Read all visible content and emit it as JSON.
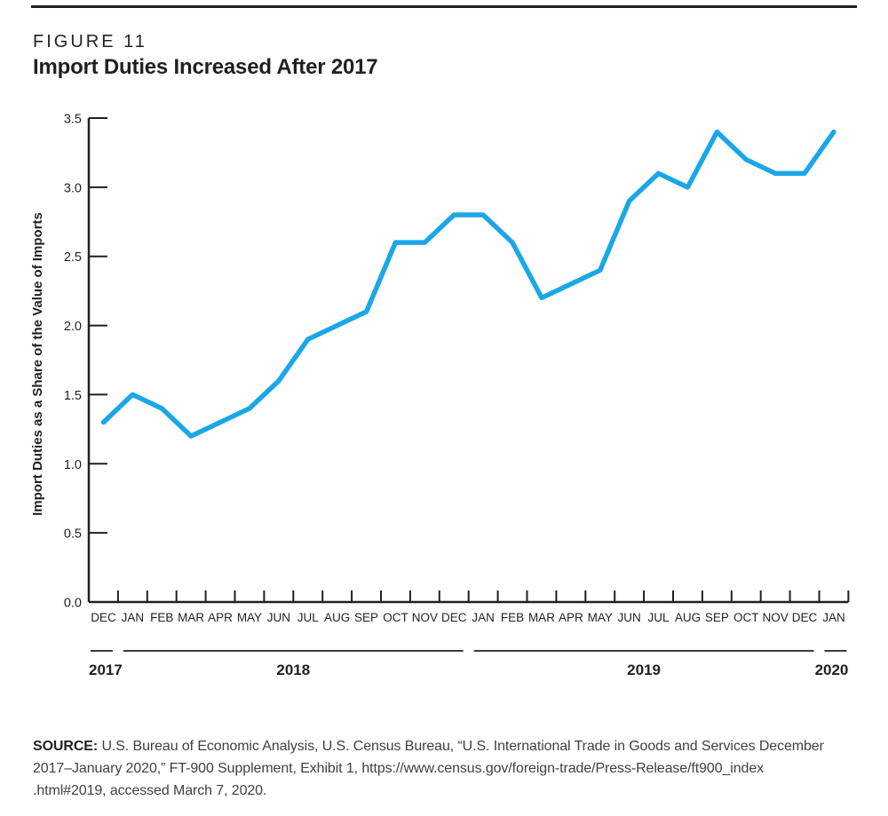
{
  "header": {
    "figure_label": "FIGURE 11",
    "title": "Import Duties Increased After 2017"
  },
  "chart_data": {
    "type": "line",
    "title": "Import Duties Increased After 2017",
    "xlabel": "",
    "ylabel": "Import Duties as a Share of the Value of Imports",
    "ylim": [
      0.0,
      3.5
    ],
    "y_ticks": [
      "0.0",
      "0.5",
      "1.0",
      "1.5",
      "2.0",
      "2.5",
      "3.0",
      "3.5"
    ],
    "grid": false,
    "legend": "none",
    "line_color": "#1aa7e8",
    "axis_color": "#231f20",
    "categories": [
      "DEC",
      "JAN",
      "FEB",
      "MAR",
      "APR",
      "MAY",
      "JUN",
      "JUL",
      "AUG",
      "SEP",
      "OCT",
      "NOV",
      "DEC",
      "JAN",
      "FEB",
      "MAR",
      "APR",
      "MAY",
      "JUN",
      "JUL",
      "AUG",
      "SEP",
      "OCT",
      "NOV",
      "DEC",
      "JAN"
    ],
    "values": [
      1.3,
      1.5,
      1.4,
      1.2,
      1.3,
      1.4,
      1.6,
      1.9,
      2.0,
      2.1,
      2.6,
      2.6,
      2.8,
      2.8,
      2.6,
      2.2,
      2.3,
      2.4,
      2.9,
      3.1,
      3.0,
      3.4,
      3.2,
      3.1,
      3.1,
      3.4
    ],
    "year_groups": [
      {
        "label": "2017",
        "start": 0,
        "end": 0
      },
      {
        "label": "2018",
        "start": 1,
        "end": 12
      },
      {
        "label": "2019",
        "start": 13,
        "end": 24
      },
      {
        "label": "2020",
        "start": 25,
        "end": 25
      }
    ]
  },
  "source": {
    "label": "SOURCE:",
    "lines": [
      "U.S. Bureau of Economic Analysis, U.S. Census Bureau, “U.S. International Trade in Goods and Services December",
      "2017–January 2020,” FT-900 Supplement, Exhibit 1, https://www.census.gov/foreign-trade/Press-Release/ft900_index",
      ".html#2019, accessed March 7, 2020."
    ]
  }
}
